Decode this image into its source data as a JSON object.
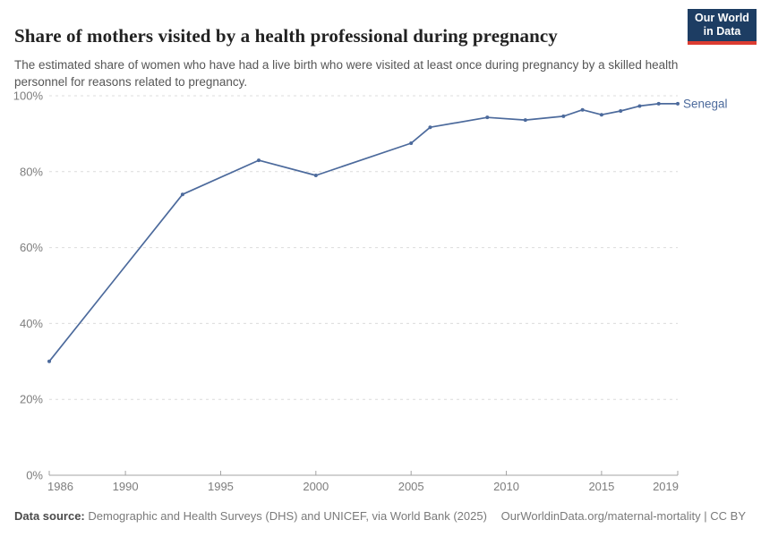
{
  "header": {
    "title": "Share of mothers visited by a health professional during pregnancy",
    "subtitle": "The estimated share of women who have had a live birth who were visited at least once during pregnancy by a skilled health personnel for reasons related to pregnancy.",
    "logo": {
      "line1": "Our World",
      "line2": "in Data"
    }
  },
  "chart_data": {
    "type": "line",
    "title": "Share of mothers visited by a health professional during pregnancy",
    "xlabel": "",
    "ylabel": "",
    "xlim": [
      1986,
      2019
    ],
    "ylim": [
      0,
      100
    ],
    "x_ticks": [
      1986,
      1990,
      1995,
      2000,
      2005,
      2010,
      2015,
      2019
    ],
    "y_ticks": [
      0,
      20,
      40,
      60,
      80,
      100
    ],
    "y_tick_suffix": "%",
    "grid": "horizontal-dashed",
    "legend_position": "line-end-label",
    "series": [
      {
        "name": "Senegal",
        "color": "#4c6a9c",
        "x": [
          1986,
          1993,
          1997,
          2000,
          2005,
          2006,
          2009,
          2011,
          2013,
          2014,
          2015,
          2016,
          2017,
          2018,
          2019
        ],
        "values": [
          30,
          74,
          83,
          79,
          87.5,
          91.7,
          94.3,
          93.6,
          94.6,
          96.3,
          95,
          96,
          97.3,
          97.9,
          97.9
        ]
      }
    ]
  },
  "footer": {
    "datasource_label": "Data source:",
    "datasource_text": "Demographic and Health Surveys (DHS) and UNICEF, via World Bank (2025)",
    "credit": "OurWorldinData.org/maternal-mortality | CC BY"
  },
  "colors": {
    "accent_line": "#4c6a9c",
    "logo_bg": "#1d3d63",
    "logo_stripe": "#dc3c31",
    "grid": "#dcdcdc",
    "axis": "#a3a3a3",
    "tick_text": "#7d7d7d",
    "title_text": "#222222",
    "subtitle_text": "#565656"
  }
}
